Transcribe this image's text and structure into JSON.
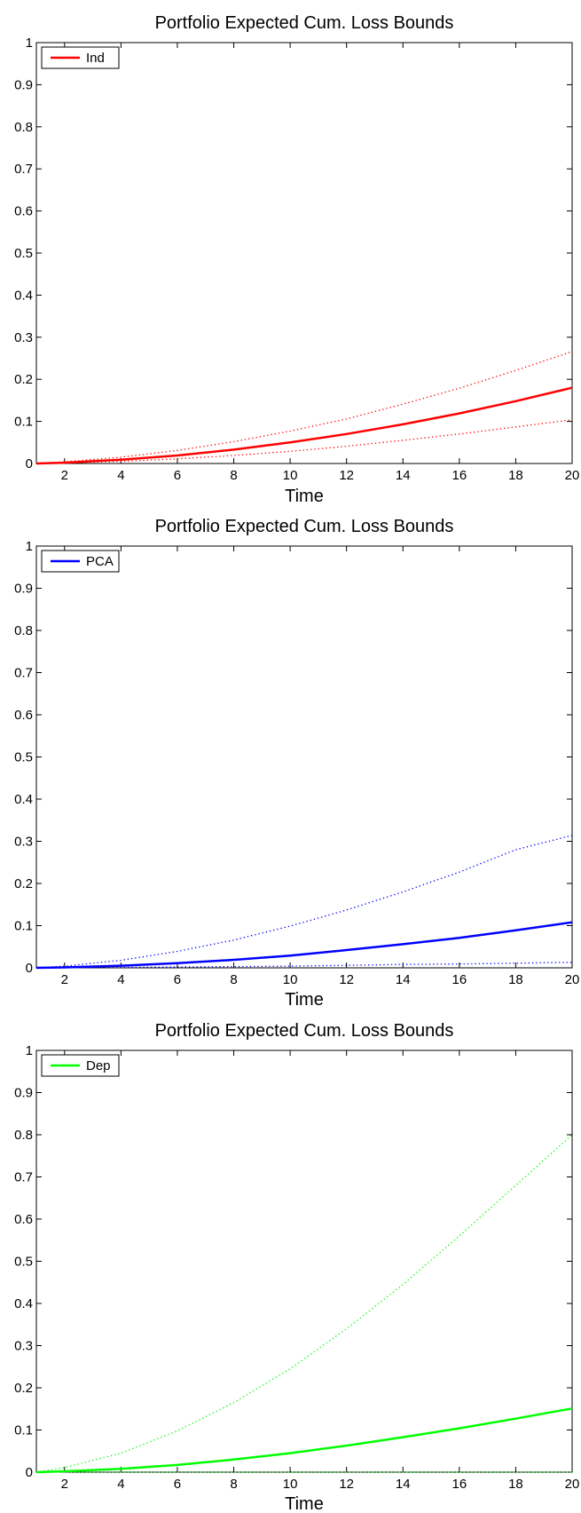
{
  "chart_data": [
    {
      "type": "line",
      "title": "Portfolio Expected Cum. Loss Bounds",
      "xlabel": "Time",
      "ylabel": "",
      "xlim": [
        1,
        20
      ],
      "ylim": [
        0,
        1
      ],
      "xticks": [
        2,
        4,
        6,
        8,
        10,
        12,
        14,
        16,
        18,
        20
      ],
      "yticks": [
        0,
        0.1,
        0.2,
        0.3,
        0.4,
        0.5,
        0.6,
        0.7,
        0.8,
        0.9,
        1
      ],
      "ytick_labels": [
        "0",
        "0.1",
        "0.2",
        "0.3",
        "0.4",
        "0.5",
        "0.6",
        "0.7",
        "0.8",
        "0.9",
        "1"
      ],
      "legend": {
        "position": "top-left",
        "entries": [
          "Ind"
        ]
      },
      "color": "#ff0000",
      "x": [
        1,
        2,
        4,
        6,
        8,
        10,
        12,
        14,
        16,
        18,
        20
      ],
      "series": [
        {
          "name": "Ind",
          "style": "solid",
          "values": [
            0.0,
            0.002,
            0.009,
            0.019,
            0.033,
            0.05,
            0.07,
            0.093,
            0.119,
            0.148,
            0.18
          ]
        },
        {
          "style": "dotted",
          "values": [
            0.0,
            0.004,
            0.015,
            0.031,
            0.052,
            0.077,
            0.106,
            0.141,
            0.179,
            0.221,
            0.266
          ]
        },
        {
          "style": "dotted",
          "values": [
            0.0,
            0.001,
            0.005,
            0.011,
            0.019,
            0.029,
            0.041,
            0.055,
            0.07,
            0.087,
            0.104
          ]
        }
      ]
    },
    {
      "type": "line",
      "title": "Portfolio Expected Cum. Loss Bounds",
      "xlabel": "Time",
      "ylabel": "",
      "xlim": [
        1,
        20
      ],
      "ylim": [
        0,
        1
      ],
      "xticks": [
        2,
        4,
        6,
        8,
        10,
        12,
        14,
        16,
        18,
        20
      ],
      "yticks": [
        0,
        0.1,
        0.2,
        0.3,
        0.4,
        0.5,
        0.6,
        0.7,
        0.8,
        0.9,
        1
      ],
      "ytick_labels": [
        "0",
        "0.1",
        "0.2",
        "0.3",
        "0.4",
        "0.5",
        "0.6",
        "0.7",
        "0.8",
        "0.9",
        "1"
      ],
      "legend": {
        "position": "top-left",
        "entries": [
          "PCA"
        ]
      },
      "color": "#0000ff",
      "x": [
        1,
        2,
        4,
        6,
        8,
        10,
        12,
        14,
        16,
        18,
        20
      ],
      "series": [
        {
          "name": "PCA",
          "style": "solid",
          "values": [
            0.0,
            0.001,
            0.005,
            0.011,
            0.019,
            0.029,
            0.042,
            0.056,
            0.071,
            0.089,
            0.108
          ]
        },
        {
          "style": "dotted",
          "values": [
            0.0,
            0.004,
            0.018,
            0.039,
            0.066,
            0.099,
            0.137,
            0.18,
            0.227,
            0.28,
            0.314
          ]
        },
        {
          "style": "dotted",
          "values": [
            0.0,
            0.0,
            0.001,
            0.002,
            0.003,
            0.004,
            0.006,
            0.008,
            0.009,
            0.011,
            0.013
          ]
        }
      ]
    },
    {
      "type": "line",
      "title": "Portfolio Expected Cum. Loss Bounds",
      "xlabel": "Time",
      "ylabel": "",
      "xlim": [
        1,
        20
      ],
      "ylim": [
        0,
        1
      ],
      "xticks": [
        2,
        4,
        6,
        8,
        10,
        12,
        14,
        16,
        18,
        20
      ],
      "yticks": [
        0,
        0.1,
        0.2,
        0.3,
        0.4,
        0.5,
        0.6,
        0.7,
        0.8,
        0.9,
        1
      ],
      "ytick_labels": [
        "0",
        "0.1",
        "0.2",
        "0.3",
        "0.4",
        "0.5",
        "0.6",
        "0.7",
        "0.8",
        "0.9",
        "1"
      ],
      "legend": {
        "position": "top-left",
        "entries": [
          "Dep"
        ]
      },
      "color": "#00ff00",
      "x": [
        1,
        2,
        4,
        6,
        8,
        10,
        12,
        14,
        16,
        18,
        20
      ],
      "series": [
        {
          "name": "Dep",
          "style": "solid",
          "values": [
            0.0,
            0.002,
            0.008,
            0.017,
            0.03,
            0.045,
            0.063,
            0.083,
            0.104,
            0.127,
            0.151
          ]
        },
        {
          "style": "dotted",
          "values": [
            0.0,
            0.011,
            0.045,
            0.098,
            0.165,
            0.245,
            0.34,
            0.445,
            0.56,
            0.68,
            0.8
          ]
        },
        {
          "style": "dotted",
          "values": [
            0.0,
            0.0,
            0.0,
            0.0,
            0.0,
            0.0,
            0.0,
            0.0,
            0.0,
            0.0,
            0.0
          ]
        }
      ]
    }
  ]
}
